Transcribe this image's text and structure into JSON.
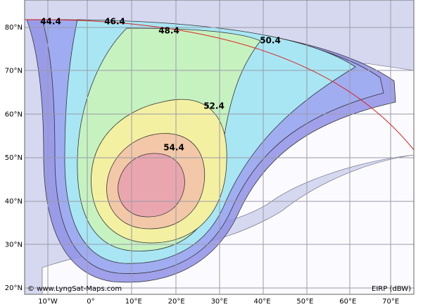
{
  "map": {
    "lat_labels": [
      "80°N",
      "70°N",
      "60°N",
      "50°N",
      "40°N",
      "30°N",
      "20°N"
    ],
    "lon_labels": [
      "10°W",
      "0°",
      "10°E",
      "20°E",
      "30°E",
      "40°E",
      "50°E",
      "60°E",
      "70°E"
    ],
    "contour_labels": [
      "44.4",
      "46.4",
      "48.4",
      "50.4",
      "52.4",
      "54.4"
    ],
    "credit": "© www.LyngSat-Maps.com",
    "legend": "EIRP (dBW)"
  }
}
